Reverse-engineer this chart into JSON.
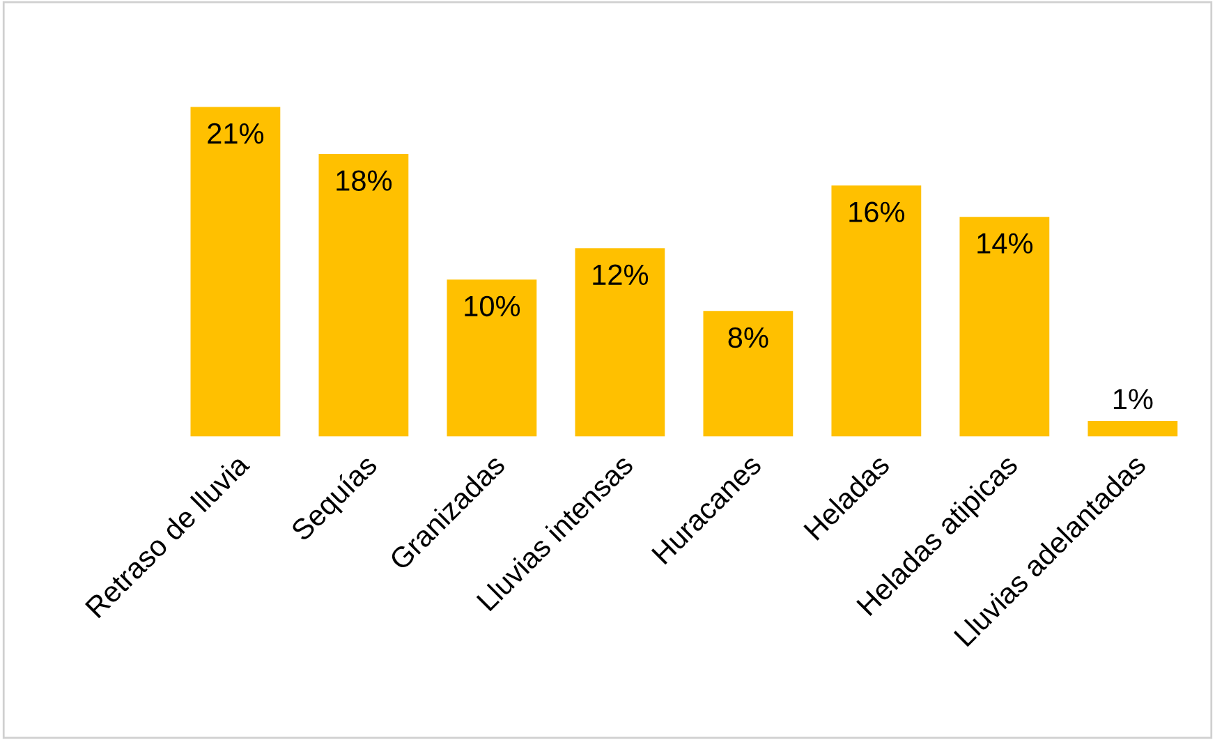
{
  "chart_data": {
    "type": "bar",
    "categories": [
      "Retraso de lluvia",
      "Sequías",
      "Granizadas",
      "Lluvias intensas",
      "Huracanes",
      "Heladas",
      "Heladas atipicas",
      "Lluvias adelantadas"
    ],
    "values": [
      21,
      18,
      10,
      12,
      8,
      16,
      14,
      1
    ],
    "color": "#ffc000",
    "value_labels": [
      "21%",
      "18%",
      "10%",
      "12%",
      "8%",
      "16%",
      "14%",
      "1%"
    ],
    "grid": false,
    "legend": false
  }
}
